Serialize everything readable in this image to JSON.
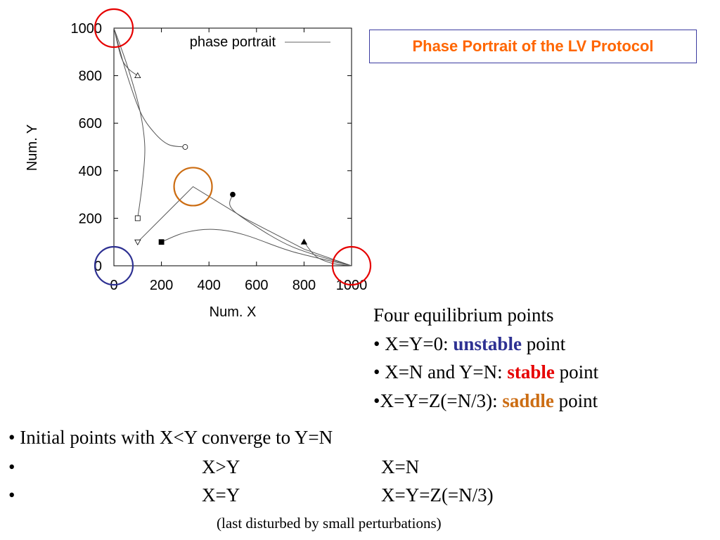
{
  "title": "Phase Portrait of the LV Protocol",
  "chart_data": {
    "type": "line",
    "xlabel": "Num. X",
    "ylabel": "Num. Y",
    "xlim": [
      0,
      1000
    ],
    "ylim": [
      0,
      1000
    ],
    "xticks": [
      "0",
      "200",
      "400",
      "600",
      "800",
      "1000"
    ],
    "yticks": [
      "0",
      "200",
      "400",
      "600",
      "800",
      "1000"
    ],
    "legend": "phase portrait",
    "legend_position": "top-right",
    "series": [
      {
        "start_marker": "triangle",
        "points": [
          [
            100,
            800
          ],
          [
            60,
            830
          ],
          [
            30,
            880
          ],
          [
            0,
            1000
          ]
        ]
      },
      {
        "start_marker": "circle",
        "points": [
          [
            300,
            500
          ],
          [
            230,
            510
          ],
          [
            170,
            560
          ],
          [
            110,
            650
          ],
          [
            50,
            820
          ],
          [
            0,
            1000
          ]
        ]
      },
      {
        "start_marker": "square",
        "points": [
          [
            100,
            200
          ],
          [
            120,
            350
          ],
          [
            130,
            500
          ],
          [
            110,
            650
          ],
          [
            60,
            830
          ],
          [
            0,
            1000
          ]
        ]
      },
      {
        "start_marker": "triangle-down",
        "points": [
          [
            100,
            100
          ],
          [
            333,
            333
          ],
          [
            550,
            200
          ],
          [
            800,
            70
          ],
          [
            1000,
            0
          ]
        ]
      },
      {
        "start_marker": "filled-square",
        "points": [
          [
            200,
            100
          ],
          [
            300,
            140
          ],
          [
            420,
            153
          ],
          [
            550,
            130
          ],
          [
            750,
            60
          ],
          [
            1000,
            0
          ]
        ]
      },
      {
        "start_marker": "filled-circle",
        "points": [
          [
            500,
            300
          ],
          [
            490,
            250
          ],
          [
            560,
            190
          ],
          [
            750,
            80
          ],
          [
            1000,
            0
          ]
        ]
      },
      {
        "start_marker": "filled-triangle",
        "points": [
          [
            800,
            100
          ],
          [
            850,
            40
          ],
          [
            920,
            10
          ],
          [
            1000,
            0
          ]
        ]
      }
    ],
    "highlights": [
      {
        "name": "highlight-circle-stable-y",
        "point": [
          0,
          1000
        ],
        "color": "#e60000"
      },
      {
        "name": "highlight-circle-saddle",
        "point": [
          333,
          333
        ],
        "color": "#cc6d13"
      },
      {
        "name": "highlight-circle-unstable",
        "point": [
          0,
          0
        ],
        "color": "#2e3192"
      },
      {
        "name": "highlight-circle-stable-x",
        "point": [
          1000,
          0
        ],
        "color": "#e60000"
      }
    ]
  },
  "equilibrium": {
    "heading": "Four equilibrium points",
    "item1": {
      "prefix": "• X=Y=0: ",
      "emph": "unstable",
      "suffix": " point"
    },
    "item2": {
      "prefix": "• X=N and Y=N: ",
      "emph": "stable",
      "suffix": " point"
    },
    "item3": {
      "prefix": "•X=Y=Z(=N/3): ",
      "emph": "saddle",
      "suffix": " point"
    }
  },
  "convergence": {
    "row1": {
      "bullet": "•",
      "lead": "Initial points with X<Y converge to Y=N"
    },
    "row2": {
      "bullet": "•",
      "condition": "X>Y",
      "result": "X=N"
    },
    "row3": {
      "bullet": "•",
      "condition": "X=Y",
      "result": "X=Y=Z(=N/3)"
    },
    "note": "(last disturbed by small perturbations)"
  },
  "colors": {
    "title": "#ff6600",
    "title_border": "#3b3ba0",
    "unstable": "#2e3192",
    "stable": "#e60000",
    "saddle": "#cc6d13"
  }
}
